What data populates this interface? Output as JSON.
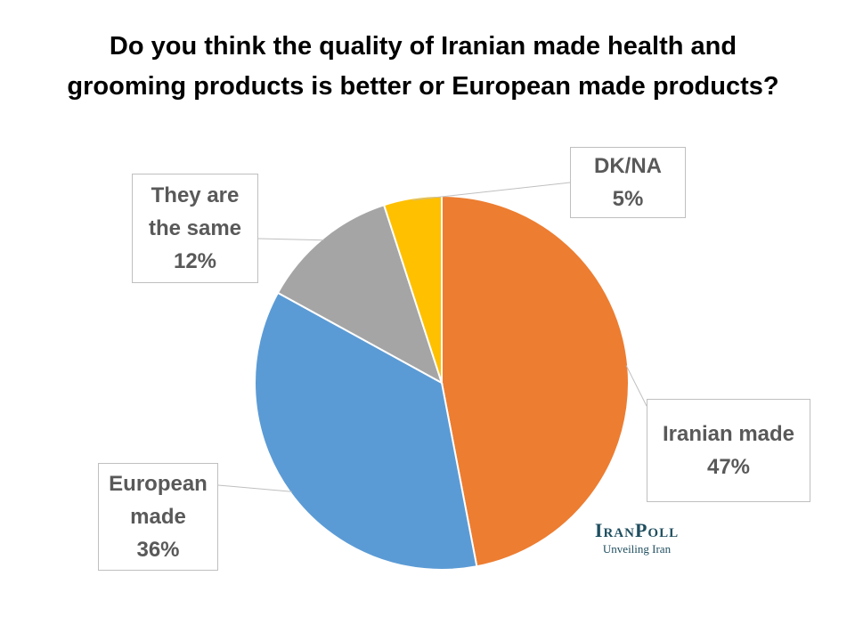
{
  "chart_data": {
    "type": "pie",
    "title": "Do you think the quality of Iranian made health and grooming products is better or European made products?",
    "categories": [
      "Iranian made",
      "European made",
      "They are the same",
      "DK/NA"
    ],
    "values": [
      47,
      36,
      12,
      5
    ],
    "value_labels": [
      "47%",
      "36%",
      "12%",
      "5%"
    ],
    "colors": [
      "#ed7d31",
      "#5b9bd5",
      "#a5a5a5",
      "#ffc000"
    ]
  },
  "branding": {
    "name": "IranPoll",
    "tagline": "Unveiling Iran"
  }
}
